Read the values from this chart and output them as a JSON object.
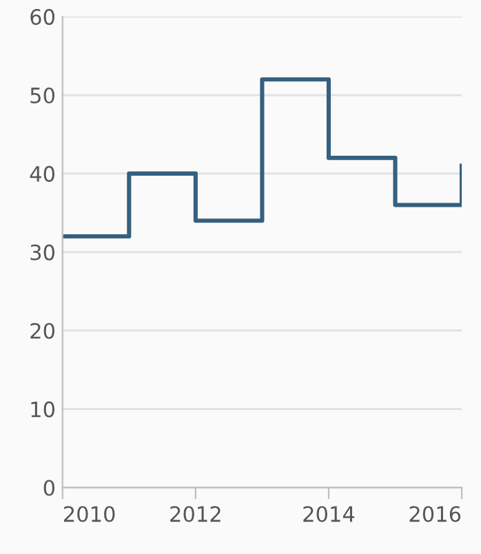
{
  "chart_data": {
    "type": "step",
    "x": [
      2010,
      2011,
      2012,
      2013,
      2014,
      2015,
      2016
    ],
    "series": [
      {
        "color": "#35607f",
        "values": [
          32,
          40,
          34,
          52,
          42,
          36,
          41
        ]
      }
    ],
    "xlim": [
      2010,
      2016
    ],
    "xticks": [
      2010,
      2012,
      2014,
      2016
    ],
    "ylim": [
      0,
      60
    ],
    "yticks": [
      0,
      10,
      20,
      30,
      40,
      50,
      60
    ],
    "grid": "y",
    "legend": false
  }
}
